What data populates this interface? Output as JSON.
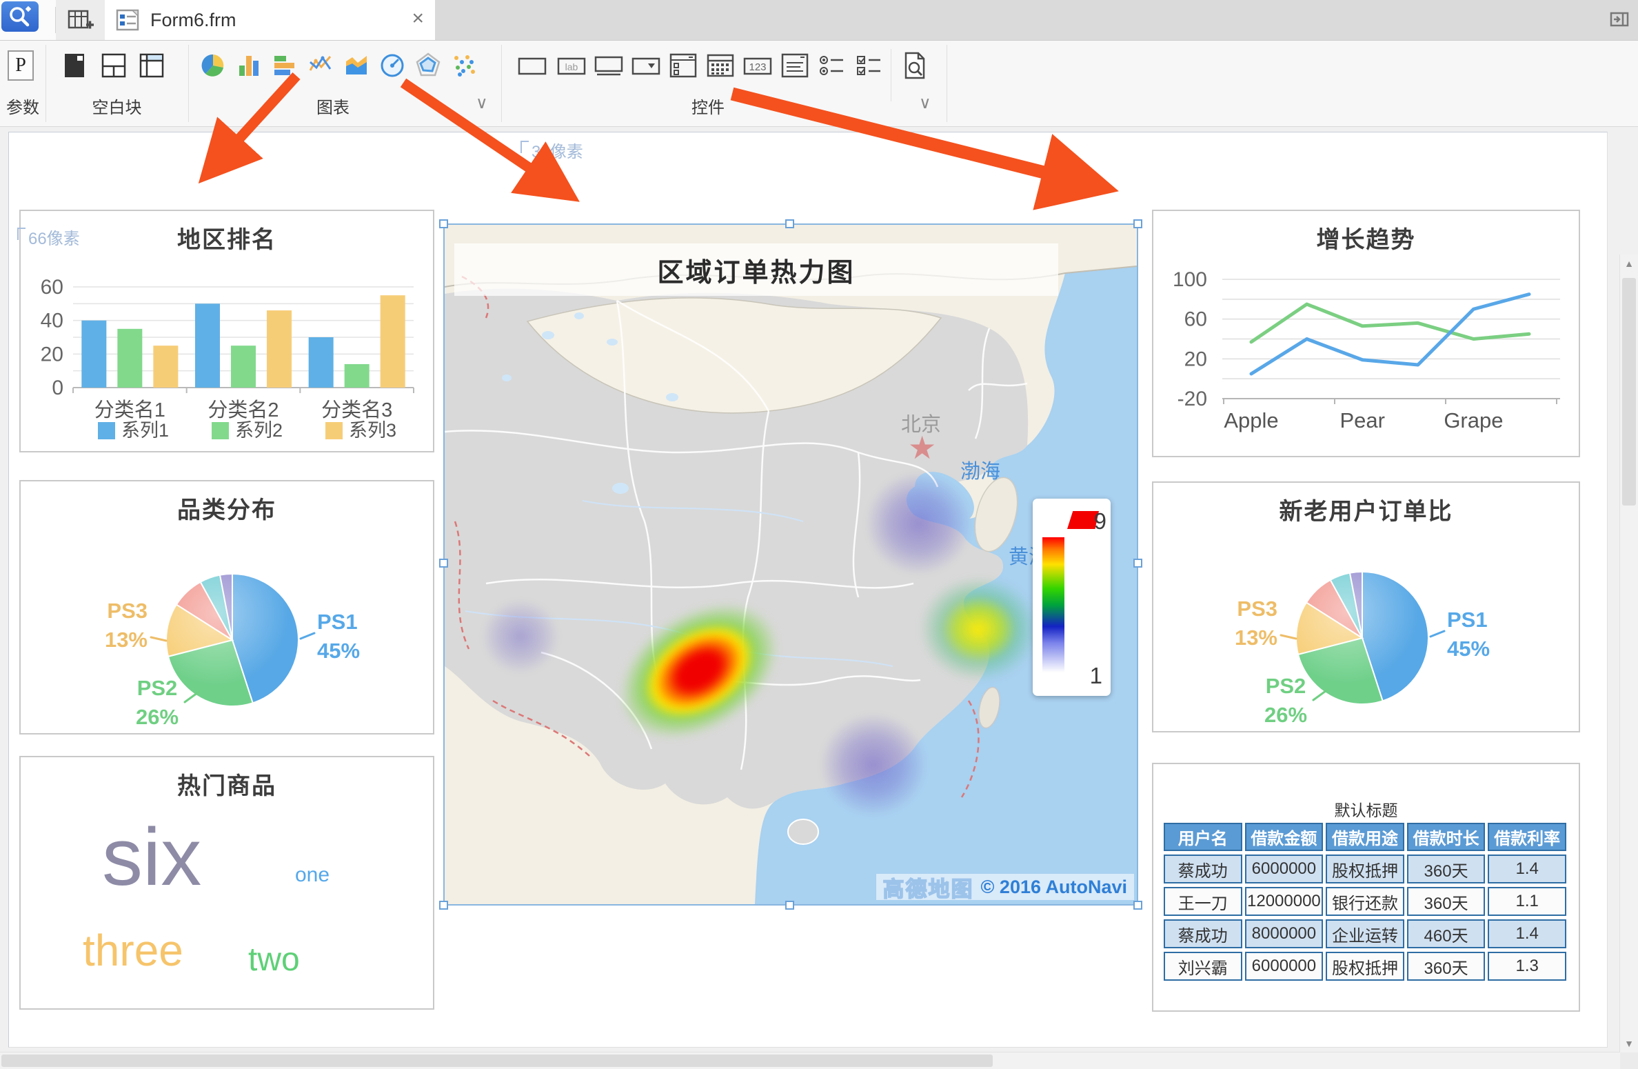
{
  "app": {
    "tab_title": "Form6.frm",
    "tab_close": "×",
    "toolbar": {
      "groups": [
        {
          "id": "params",
          "label": "参数"
        },
        {
          "id": "blank",
          "label": "空白块"
        },
        {
          "id": "chart",
          "label": "图表",
          "chevron": "∨"
        },
        {
          "id": "widget",
          "label": "控件",
          "chevron": "∨"
        }
      ],
      "icons": {
        "blank_group": [
          "absolute-block",
          "split-block",
          "tab-block"
        ],
        "chart_group": [
          "pie-chart",
          "column-chart",
          "bar-chart",
          "line-chart",
          "area-chart",
          "gauge-chart",
          "radar-chart",
          "scatter-chart"
        ],
        "control_group": [
          "text-field",
          "label",
          "text-area",
          "dropdown",
          "check-list",
          "date-picker",
          "number-field",
          "list-view",
          "radio-group",
          "checkbox-group"
        ],
        "preview": "page-search"
      }
    }
  },
  "canvas": {
    "top_measure": "31像素",
    "left_measure": "66像素"
  },
  "accent_colors": {
    "series_blue": "#5fb0e6",
    "series_green": "#82d98c",
    "series_yellow": "#f6cd77",
    "selection_blue": "#88b6e0",
    "arrow_orange": "#f4511e",
    "table_header": "#5b9bd5"
  },
  "chart_data": [
    {
      "id": "region-rank",
      "type": "bar",
      "title": "地区排名",
      "categories": [
        "分类名1",
        "分类名2",
        "分类名3"
      ],
      "series": [
        {
          "name": "系列1",
          "color": "#5fb0e6",
          "values": [
            40,
            50,
            30
          ]
        },
        {
          "name": "系列2",
          "color": "#82d98c",
          "values": [
            35,
            25,
            14
          ]
        },
        {
          "name": "系列3",
          "color": "#f6cd77",
          "values": [
            25,
            46,
            55
          ]
        }
      ],
      "ylim": [
        0,
        60
      ],
      "yticks": [
        0,
        20,
        40,
        60
      ],
      "grid": true,
      "legend_position": "bottom"
    },
    {
      "id": "category-pie",
      "type": "pie",
      "title": "品类分布",
      "slices": [
        {
          "label": "PS1",
          "pct": 45,
          "color": "#57a8e6"
        },
        {
          "label": "PS2",
          "pct": 26,
          "color": "#6fd08a"
        },
        {
          "label": "PS3",
          "pct": 13,
          "color": "#f7cd74"
        },
        {
          "label": "",
          "pct": 8,
          "color": "#f2938b"
        },
        {
          "label": "",
          "pct": 5,
          "color": "#6bcbd2"
        },
        {
          "label": "",
          "pct": 3,
          "color": "#9189ce"
        }
      ],
      "visible_labels": [
        "PS1 45%",
        "PS2 26%",
        "PS3 13%"
      ]
    },
    {
      "id": "hot-words",
      "type": "wordcloud",
      "title": "热门商品",
      "words": [
        {
          "text": "six",
          "weight": 6,
          "color": "#8d8ba6"
        },
        {
          "text": "three",
          "weight": 3,
          "color": "#f6c46b"
        },
        {
          "text": "two",
          "weight": 2,
          "color": "#5ed077"
        },
        {
          "text": "one",
          "weight": 1,
          "color": "#54a7ea"
        }
      ]
    },
    {
      "id": "order-heatmap",
      "type": "heatmap",
      "title": "区域订单热力图",
      "legend_max": 9,
      "legend_min": 1,
      "geo_labels": {
        "beijing": "北京",
        "bohai": "渤海",
        "huanghai": "黄海"
      },
      "attribution": {
        "logo": "高德地图",
        "copyright": "© 2016 AutoNavi"
      },
      "hotspots": [
        {
          "x": 0.368,
          "y": 0.657,
          "intensity": 9
        },
        {
          "x": 0.772,
          "y": 0.595,
          "intensity": 6
        },
        {
          "x": 0.685,
          "y": 0.44,
          "intensity": 3
        },
        {
          "x": 0.62,
          "y": 0.795,
          "intensity": 3
        },
        {
          "x": 0.11,
          "y": 0.606,
          "intensity": 2
        }
      ]
    },
    {
      "id": "growth-trend",
      "type": "line",
      "title": "增长趋势",
      "x_count": 6,
      "x_tick_labels": [
        {
          "label": "Apple",
          "at": 0
        },
        {
          "label": "Pear",
          "at": 2
        },
        {
          "label": "Grape",
          "at": 4
        }
      ],
      "series": [
        {
          "name": "green",
          "color": "#7bcf82",
          "values": [
            37,
            75,
            53,
            56,
            40,
            45
          ]
        },
        {
          "name": "blue",
          "color": "#58a7e8",
          "values": [
            5,
            40,
            19,
            14,
            70,
            85
          ]
        }
      ],
      "ylim": [
        -20,
        100
      ],
      "yticks": [
        100,
        60,
        20,
        -20
      ],
      "grid_step": 20,
      "grid": true
    },
    {
      "id": "user-ratio-pie",
      "type": "pie",
      "title": "新老用户订单比",
      "slices": [
        {
          "label": "PS1",
          "pct": 45,
          "color": "#57a8e6"
        },
        {
          "label": "PS2",
          "pct": 26,
          "color": "#6fd08a"
        },
        {
          "label": "PS3",
          "pct": 13,
          "color": "#f7cd74"
        },
        {
          "label": "",
          "pct": 8,
          "color": "#f2938b"
        },
        {
          "label": "",
          "pct": 5,
          "color": "#6bcbd2"
        },
        {
          "label": "",
          "pct": 3,
          "color": "#9189ce"
        }
      ],
      "visible_labels": [
        "PS1 45%",
        "PS2 26%",
        "PS3 13%"
      ]
    },
    {
      "id": "loan-table",
      "type": "table",
      "title": "默认标题",
      "headers": [
        "用户名",
        "借款金额",
        "借款用途",
        "借款时长",
        "借款利率"
      ],
      "rows": [
        [
          "蔡成功",
          "6000000",
          "股权抵押",
          "360天",
          "1.4"
        ],
        [
          "王一刀",
          "12000000",
          "银行还款",
          "360天",
          "1.1"
        ],
        [
          "蔡成功",
          "8000000",
          "企业运转",
          "460天",
          "1.4"
        ],
        [
          "刘兴霸",
          "6000000",
          "股权抵押",
          "360天",
          "1.3"
        ]
      ]
    }
  ]
}
